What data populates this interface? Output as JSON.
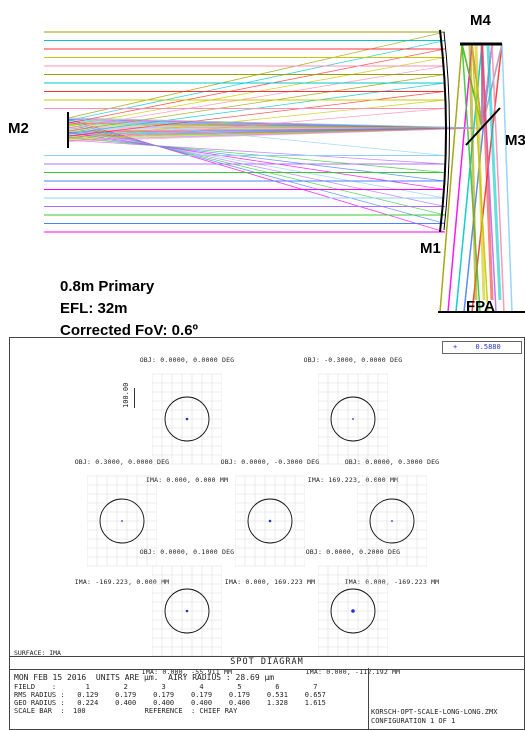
{
  "optics": {
    "labels": {
      "m2": "M2",
      "m4": "M4",
      "m3": "M3",
      "m1": "M1",
      "fpa": "FPA"
    },
    "specs": [
      "0.8m Primary",
      "EFL: 32m",
      "Corrected FoV: 0.6º"
    ]
  },
  "spot": {
    "legend_value": "0.5880",
    "scale_label": "100.00",
    "title": "SPOT DIAGRAM",
    "surface": "SURFACE: IMA",
    "cells": [
      {
        "obj": "OBJ: 0.0000, 0.0000 DEG",
        "ima": "IMA: 0.000, 0.000 MM"
      },
      {
        "obj": "OBJ: -0.3000, 0.0000 DEG",
        "ima": "IMA: 169.223, 0.000 MM"
      },
      {
        "obj": "OBJ: 0.3000, 0.0000 DEG",
        "ima": "IMA: -169.223, 0.000 MM"
      },
      {
        "obj": "OBJ: 0.0000, -0.3000 DEG",
        "ima": "IMA: 0.000, 169.223 MM"
      },
      {
        "obj": "OBJ: 0.0000, 0.3000 DEG",
        "ima": "IMA: 0.000, -169.223 MM"
      },
      {
        "obj": "OBJ: 0.0000, 0.1000 DEG",
        "ima": "IMA: 0.000, -55.911 MM"
      },
      {
        "obj": "OBJ: 0.0000, 0.2000 DEG",
        "ima": "IMA: 0.000, -112.192 MM"
      }
    ],
    "footer": {
      "date_line": "MON FEB 15 2016  UNITS ARE µm.  AIRY RADIUS : 28.69 µm",
      "field_line": "FIELD    :       1        2        3        4        5        6        7",
      "rms_line": "RMS RADIUS :   0.129    0.179    0.179    0.179    0.179    0.531    0.657",
      "geo_line": "GEO RADIUS :   0.224    0.400    0.400    0.400    0.400    1.328    1.615",
      "scale_line": "SCALE BAR  :  100              REFERENCE  : CHIEF RAY",
      "file_name": "KORSCH-OPT-SCALE-LONG-LONG.ZMX",
      "configuration": "CONFIGURATION  1  OF  1"
    }
  }
}
